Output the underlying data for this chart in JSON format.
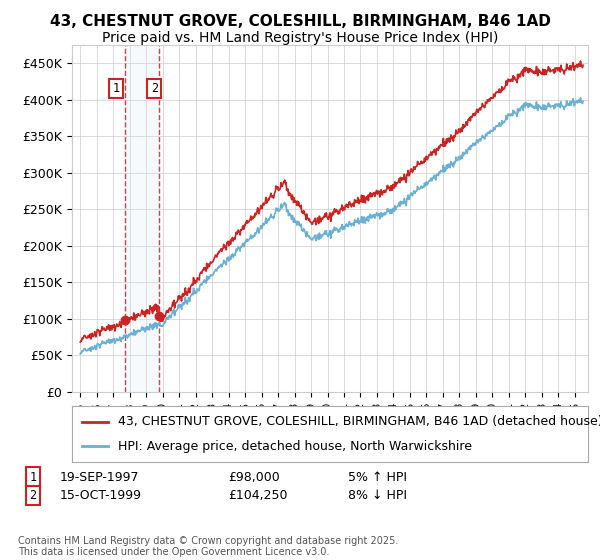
{
  "title_line1": "43, CHESTNUT GROVE, COLESHILL, BIRMINGHAM, B46 1AD",
  "title_line2": "Price paid vs. HM Land Registry's House Price Index (HPI)",
  "ylim": [
    0,
    475000
  ],
  "yticks": [
    0,
    50000,
    100000,
    150000,
    200000,
    250000,
    300000,
    350000,
    400000,
    450000
  ],
  "ytick_labels": [
    "£0",
    "£50K",
    "£100K",
    "£150K",
    "£200K",
    "£250K",
    "£300K",
    "£350K",
    "£400K",
    "£450K"
  ],
  "hpi_color": "#6ab0d4",
  "price_color": "#cc2222",
  "vline_color": "#cc2222",
  "shade_color": "#d0e8f5",
  "background_color": "#ffffff",
  "grid_color": "#cccccc",
  "legend_label_price": "43, CHESTNUT GROVE, COLESHILL, BIRMINGHAM, B46 1AD (detached house)",
  "legend_label_hpi": "HPI: Average price, detached house, North Warwickshire",
  "purchase1_date": "19-SEP-1997",
  "purchase1_price": "£98,000",
  "purchase1_hpi": "5% ↑ HPI",
  "purchase1_year": 1997.72,
  "purchase1_value": 98000,
  "purchase2_date": "15-OCT-1999",
  "purchase2_price": "£104,250",
  "purchase2_hpi": "8% ↓ HPI",
  "purchase2_year": 1999.79,
  "purchase2_value": 104250,
  "footer": "Contains HM Land Registry data © Crown copyright and database right 2025.\nThis data is licensed under the Open Government Licence v3.0.",
  "title_fontsize": 11,
  "subtitle_fontsize": 10,
  "tick_fontsize": 9,
  "legend_fontsize": 9,
  "footer_fontsize": 7
}
